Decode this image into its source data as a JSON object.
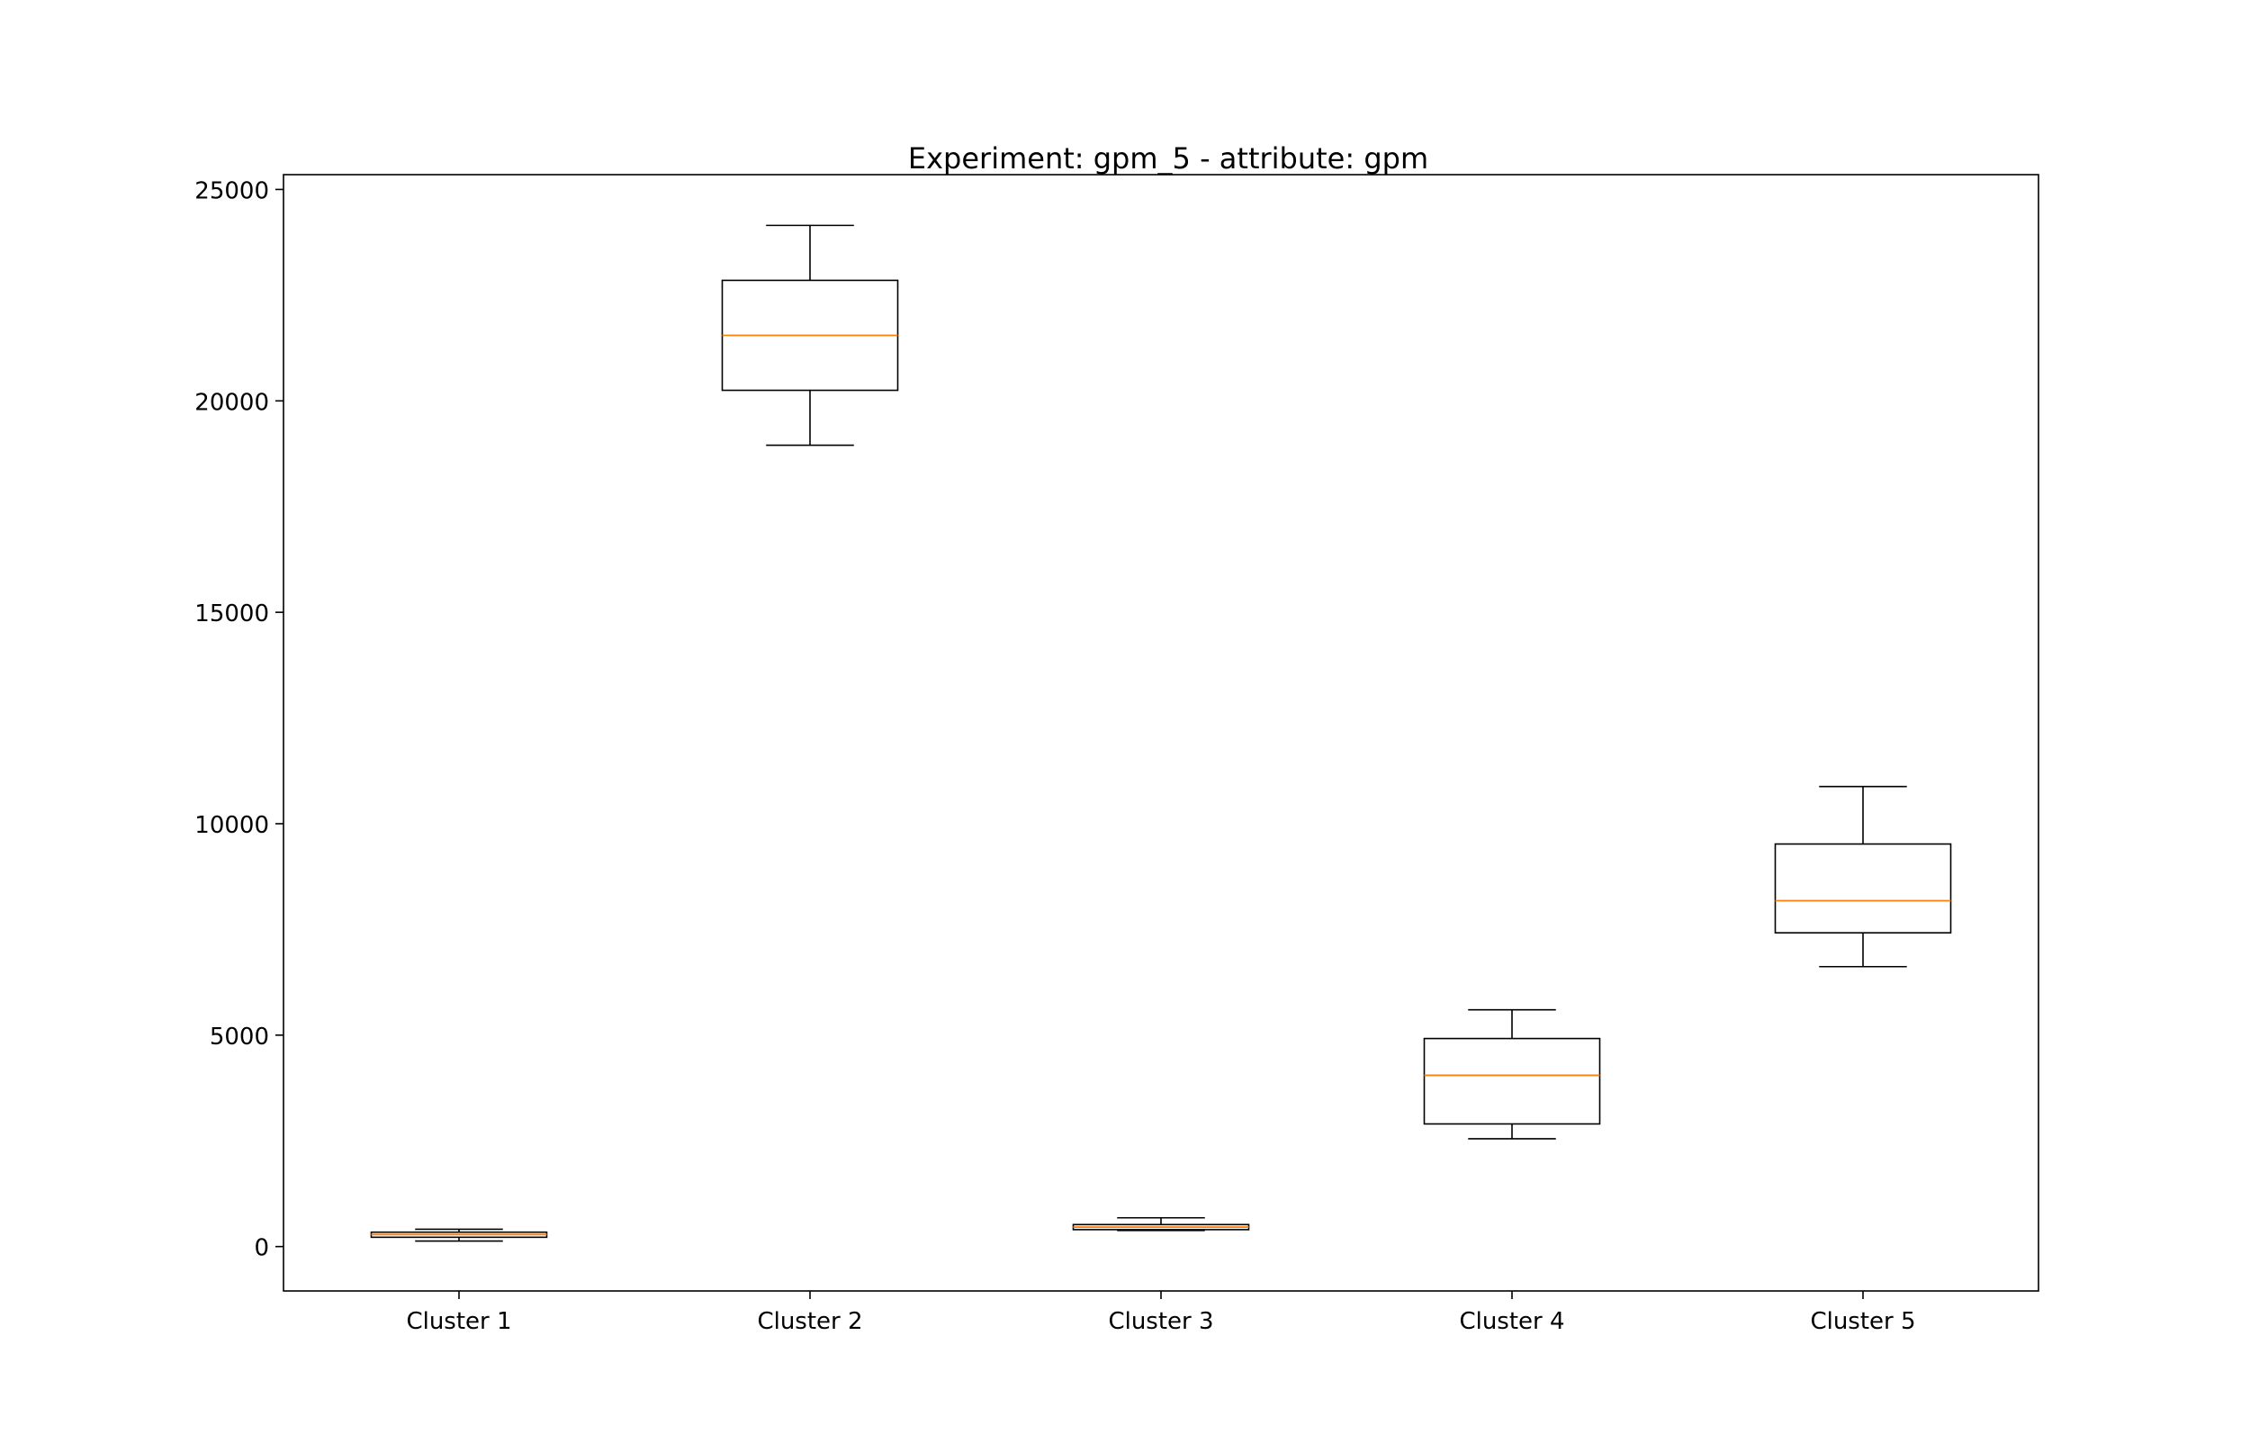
{
  "chart_data": {
    "type": "boxplot",
    "title": "Experiment: gpm_5 - attribute: gpm",
    "xlabel": "",
    "ylabel": "",
    "ylim": [
      -1050,
      25350
    ],
    "yticks": [
      0,
      5000,
      10000,
      15000,
      20000,
      25000
    ],
    "ytick_labels": [
      "0",
      "5000",
      "10000",
      "15000",
      "20000",
      "25000"
    ],
    "categories": [
      "Cluster 1",
      "Cluster 2",
      "Cluster 3",
      "Cluster 4",
      "Cluster 5"
    ],
    "boxes": [
      {
        "category": "Cluster 1",
        "whisker_low": 130,
        "q1": 220,
        "median": 285,
        "q3": 340,
        "whisker_high": 410
      },
      {
        "category": "Cluster 2",
        "whisker_low": 18950,
        "q1": 20250,
        "median": 21550,
        "q3": 22850,
        "whisker_high": 24150
      },
      {
        "category": "Cluster 3",
        "whisker_low": 380,
        "q1": 400,
        "median": 460,
        "q3": 520,
        "whisker_high": 680
      },
      {
        "category": "Cluster 4",
        "whisker_low": 2550,
        "q1": 2900,
        "median": 4050,
        "q3": 4920,
        "whisker_high": 5600
      },
      {
        "category": "Cluster 5",
        "whisker_low": 6620,
        "q1": 7420,
        "median": 8180,
        "q3": 9520,
        "whisker_high": 10880
      }
    ],
    "grid": false,
    "legend": "none",
    "colors": {
      "box": "#000000",
      "median": "#ff7f0e",
      "axes": "#000000",
      "background": "#ffffff"
    }
  }
}
